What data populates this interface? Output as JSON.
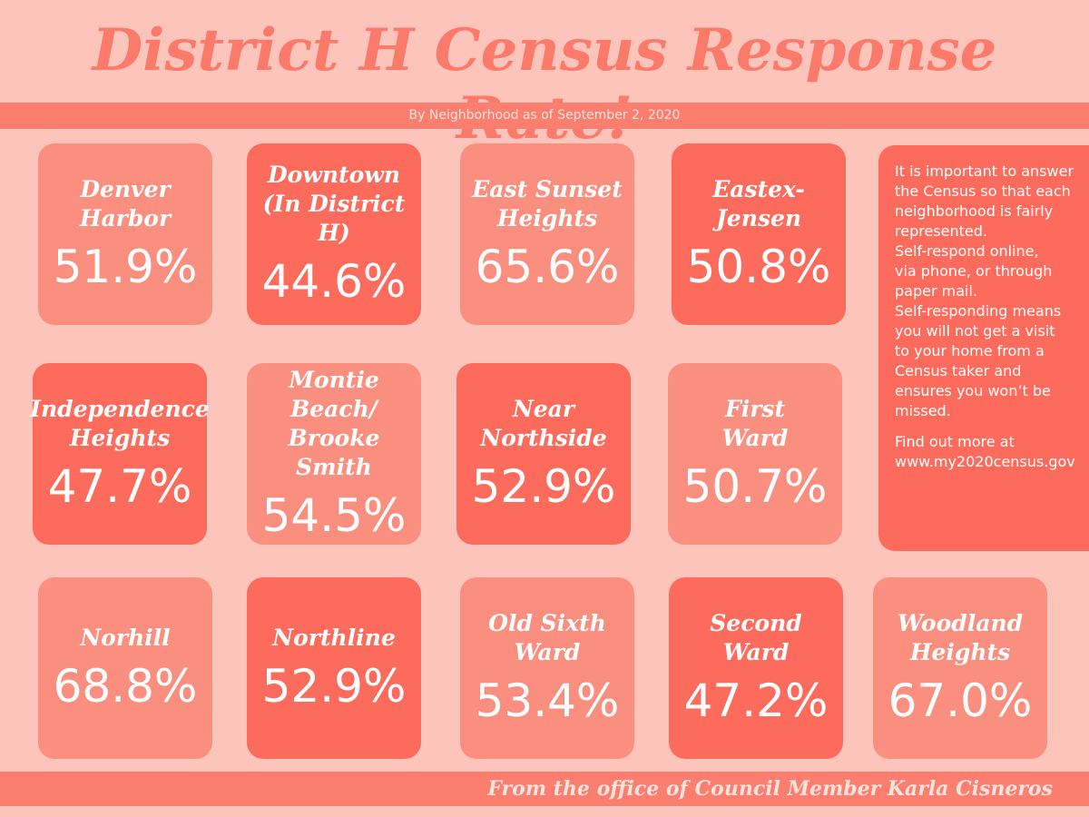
{
  "header": {
    "title": "District H Census Response Rate!",
    "subtitle": "By Neighborhood as of September 2, 2020"
  },
  "neighborhoods": [
    {
      "name": [
        "Denver",
        "Harbor"
      ],
      "rate": "51.9%"
    },
    {
      "name": [
        "Downtown",
        "(In District H)"
      ],
      "rate": "44.6%"
    },
    {
      "name": [
        "East Sunset",
        "Heights"
      ],
      "rate": "65.6%"
    },
    {
      "name": [
        "Eastex-",
        "Jensen"
      ],
      "rate": "50.8%"
    },
    {
      "name": [
        "Independence",
        "Heights"
      ],
      "rate": "47.7%"
    },
    {
      "name": [
        "Montie Beach/",
        "Brooke Smith"
      ],
      "rate": "54.5%"
    },
    {
      "name": [
        "Near",
        "Northside"
      ],
      "rate": "52.9%"
    },
    {
      "name": [
        "First",
        "Ward"
      ],
      "rate": "50.7%"
    },
    {
      "name": [
        "Norhill"
      ],
      "rate": "68.8%"
    },
    {
      "name": [
        "Northline"
      ],
      "rate": "52.9%"
    },
    {
      "name": [
        "Old Sixth",
        "Ward"
      ],
      "rate": "53.4%"
    },
    {
      "name": [
        "Second",
        "Ward"
      ],
      "rate": "47.2%"
    },
    {
      "name": [
        "Woodland",
        "Heights"
      ],
      "rate": "67.0%"
    }
  ],
  "info": {
    "paragraphs": [
      [
        "It is important to answer",
        "the Census so that each",
        "neighborhood is fairly",
        "represented.",
        "Self-respond online,",
        "via phone, or through",
        "paper mail.",
        "Self-responding means",
        "you will not get a visit",
        "to your home from a",
        "Census taker and",
        "ensures you won’t be",
        "missed."
      ],
      [
        "Find out more at",
        "www.my2020census.gov"
      ]
    ]
  },
  "footer": {
    "credit": "From the office of Council Member Karla Cisneros"
  }
}
